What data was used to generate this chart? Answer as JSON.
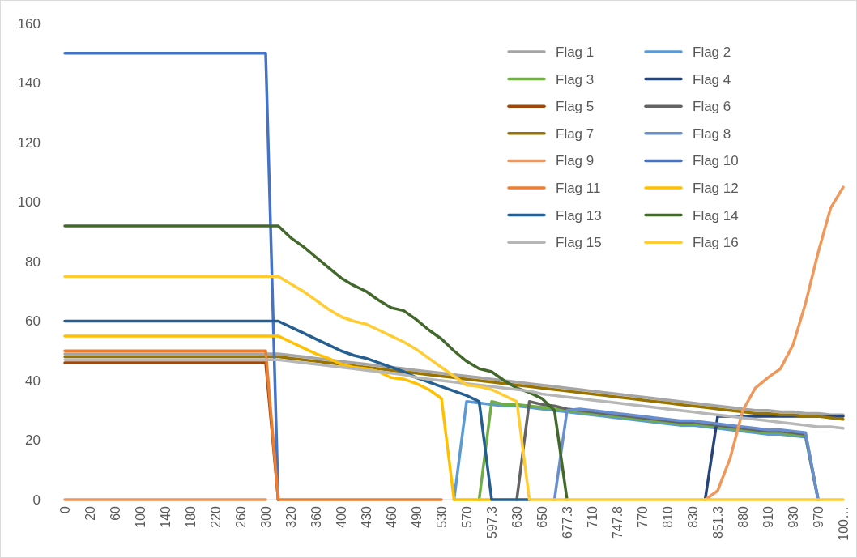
{
  "chart_data": {
    "type": "line",
    "categories": [
      "0",
      null,
      "20",
      null,
      "60",
      null,
      "100",
      null,
      "140",
      null,
      "180",
      null,
      "220",
      null,
      "260",
      null,
      "300",
      null,
      "320",
      null,
      "360",
      null,
      "400",
      null,
      "430",
      null,
      "460",
      null,
      "490",
      null,
      "530",
      null,
      "570",
      null,
      "597.3",
      null,
      "630",
      null,
      "650",
      null,
      "677.3",
      null,
      "710",
      null,
      "747.8",
      null,
      "770",
      null,
      "810",
      null,
      "830",
      null,
      "851.3",
      null,
      "880",
      null,
      "910",
      null,
      "930",
      null,
      "970",
      null,
      "100…"
    ],
    "ylim": [
      0,
      160
    ],
    "yticks": [
      0,
      20,
      40,
      60,
      80,
      100,
      120,
      140,
      160
    ],
    "grid": false,
    "legend": "top right",
    "line_style": "solid",
    "marker": "none",
    "series": [
      {
        "name": "Flag 1",
        "color": "#a5a5a5",
        "values": [
          49,
          49,
          49,
          49,
          49,
          49,
          49,
          49,
          49,
          49,
          49,
          49,
          49,
          49,
          49,
          49,
          49,
          49,
          48.5,
          48,
          47.5,
          47,
          46.5,
          46,
          45.5,
          45,
          44.5,
          44,
          43.5,
          43,
          42.5,
          42,
          41.5,
          41,
          40.5,
          40,
          39.5,
          39,
          38.5,
          38,
          37.5,
          37,
          36.5,
          36,
          35.5,
          35,
          34.5,
          34,
          33.5,
          33,
          32.5,
          32,
          31.5,
          31,
          30.5,
          30,
          30,
          29.5,
          29.5,
          29,
          29,
          28.5,
          28.5
        ]
      },
      {
        "name": "Flag 2",
        "color": "#5b9bd5",
        "values": [
          null,
          null,
          null,
          null,
          null,
          null,
          null,
          null,
          null,
          null,
          null,
          null,
          null,
          null,
          null,
          null,
          null,
          null,
          null,
          null,
          null,
          null,
          null,
          null,
          null,
          null,
          null,
          null,
          null,
          null,
          null,
          0,
          33,
          32.5,
          32,
          31.5,
          31.5,
          31,
          30.5,
          30,
          29.5,
          29,
          28.5,
          28,
          27.5,
          27,
          26.5,
          26,
          25.5,
          25,
          25,
          24.5,
          24,
          23.5,
          23,
          22.5,
          22,
          22,
          21.5,
          21,
          0,
          null,
          null
        ]
      },
      {
        "name": "Flag 3",
        "color": "#70ad47",
        "values": [
          null,
          null,
          null,
          null,
          null,
          null,
          null,
          null,
          null,
          null,
          null,
          null,
          null,
          null,
          null,
          null,
          null,
          null,
          null,
          null,
          null,
          null,
          null,
          null,
          null,
          null,
          null,
          null,
          null,
          null,
          null,
          null,
          null,
          0,
          33,
          32,
          32,
          31.5,
          31,
          30.5,
          30,
          29.5,
          29,
          28.5,
          28,
          27.5,
          27,
          26.5,
          26,
          25.5,
          25.5,
          25,
          24.5,
          24,
          23.5,
          23,
          22.5,
          22.5,
          22,
          21.5,
          0,
          null,
          null
        ]
      },
      {
        "name": "Flag 4",
        "color": "#264478",
        "values": [
          null,
          null,
          null,
          null,
          null,
          null,
          null,
          null,
          null,
          null,
          null,
          null,
          null,
          null,
          null,
          null,
          null,
          null,
          null,
          null,
          null,
          null,
          null,
          null,
          null,
          null,
          null,
          null,
          null,
          null,
          null,
          null,
          null,
          null,
          null,
          null,
          null,
          null,
          null,
          null,
          null,
          null,
          null,
          null,
          null,
          null,
          null,
          null,
          null,
          null,
          null,
          0,
          28,
          28,
          28,
          28,
          28,
          28,
          28,
          28,
          28,
          28,
          28
        ]
      },
      {
        "name": "Flag 5",
        "color": "#9e480e",
        "values": [
          46,
          46,
          46,
          46,
          46,
          46,
          46,
          46,
          46,
          46,
          46,
          46,
          46,
          46,
          46,
          46,
          46,
          0,
          null,
          null,
          null,
          null,
          null,
          null,
          null,
          null,
          null,
          null,
          null,
          null,
          null,
          null,
          null,
          null,
          null,
          null,
          null,
          null,
          null,
          null,
          null,
          null,
          null,
          null,
          null,
          null,
          null,
          null,
          null,
          null,
          null,
          null,
          null,
          null,
          null,
          null,
          null,
          null,
          null,
          null,
          null,
          null,
          null
        ]
      },
      {
        "name": "Flag 6",
        "color": "#636363",
        "values": [
          null,
          null,
          null,
          null,
          null,
          null,
          null,
          null,
          null,
          null,
          null,
          null,
          null,
          null,
          null,
          null,
          null,
          null,
          null,
          null,
          null,
          null,
          null,
          null,
          null,
          null,
          null,
          null,
          null,
          null,
          null,
          null,
          null,
          null,
          null,
          null,
          0,
          33,
          32,
          31.5,
          30.5,
          30,
          29.5,
          29,
          28.5,
          28,
          27.5,
          27,
          26.5,
          26,
          26,
          25.5,
          25,
          24.5,
          24,
          23.5,
          23,
          23,
          22.5,
          22,
          0,
          null,
          null
        ]
      },
      {
        "name": "Flag 7",
        "color": "#997300",
        "values": [
          48,
          48,
          48,
          48,
          48,
          48,
          48,
          48,
          48,
          48,
          48,
          48,
          48,
          48,
          48,
          48,
          48,
          48,
          47.5,
          47,
          46.5,
          46,
          45.5,
          45,
          44.5,
          44,
          43.5,
          43,
          42.5,
          42,
          41.5,
          41,
          40.5,
          40,
          39.5,
          39,
          38.5,
          38,
          37.5,
          37,
          36.5,
          36,
          35.5,
          35,
          34.5,
          34,
          33.5,
          33,
          32.5,
          32,
          31.5,
          31,
          30.5,
          30,
          29.5,
          29,
          29,
          28.5,
          28.5,
          28,
          28,
          27.5,
          27
        ]
      },
      {
        "name": "Flag 8",
        "color": "#698ed0",
        "values": [
          null,
          null,
          null,
          null,
          null,
          null,
          null,
          null,
          null,
          null,
          null,
          null,
          null,
          null,
          null,
          null,
          null,
          null,
          null,
          null,
          null,
          null,
          null,
          null,
          null,
          null,
          null,
          null,
          null,
          null,
          null,
          null,
          null,
          null,
          null,
          null,
          null,
          null,
          null,
          0,
          30,
          30.5,
          30,
          29.5,
          29,
          28.5,
          28,
          27.5,
          27,
          26.5,
          26.5,
          26,
          25.5,
          25,
          24.5,
          24,
          23.5,
          23.5,
          23,
          22.5,
          0,
          null,
          null
        ]
      },
      {
        "name": "Flag 9",
        "color": "#f1975a",
        "values": [
          0,
          0,
          0,
          0,
          0,
          0,
          0,
          0,
          0,
          0,
          0,
          0,
          0,
          0,
          0,
          0,
          0,
          null,
          null,
          null,
          null,
          null,
          null,
          null,
          null,
          null,
          null,
          null,
          null,
          null,
          null,
          null,
          null,
          null,
          null,
          null,
          null,
          null,
          null,
          null,
          null,
          null,
          null,
          null,
          null,
          null,
          null,
          null,
          null,
          null,
          null,
          0,
          3,
          14,
          30,
          37.5,
          41,
          44,
          52,
          66,
          83,
          98,
          105
        ]
      },
      {
        "name": "Flag 10",
        "color": "#4472c4",
        "values": [
          150,
          150,
          150,
          150,
          150,
          150,
          150,
          150,
          150,
          150,
          150,
          150,
          150,
          150,
          150,
          150,
          150,
          0,
          null,
          null,
          null,
          null,
          null,
          null,
          null,
          null,
          null,
          null,
          null,
          null,
          null,
          null,
          null,
          null,
          null,
          null,
          null,
          null,
          null,
          null,
          null,
          null,
          null,
          null,
          null,
          null,
          null,
          null,
          null,
          null,
          null,
          null,
          null,
          null,
          null,
          null,
          null,
          null,
          null,
          null,
          null,
          null,
          null
        ]
      },
      {
        "name": "Flag 11",
        "color": "#ed7d31",
        "values": [
          50,
          50,
          50,
          50,
          50,
          50,
          50,
          50,
          50,
          50,
          50,
          50,
          50,
          50,
          50,
          50,
          50,
          0,
          0,
          0,
          0,
          0,
          0,
          0,
          0,
          0,
          0,
          0,
          0,
          0,
          0,
          null,
          null,
          null,
          null,
          null,
          null,
          null,
          null,
          null,
          null,
          null,
          null,
          null,
          null,
          null,
          null,
          null,
          null,
          null,
          null,
          null,
          null,
          null,
          null,
          null,
          null,
          null,
          null,
          null,
          null,
          null,
          null
        ]
      },
      {
        "name": "Flag 12",
        "color": "#ffc000",
        "values": [
          55,
          55,
          55,
          55,
          55,
          55,
          55,
          55,
          55,
          55,
          55,
          55,
          55,
          55,
          55,
          55,
          55,
          55,
          53,
          51,
          49,
          47.5,
          45.5,
          44.5,
          44,
          43,
          41,
          40.5,
          39,
          37,
          34,
          0,
          0,
          0,
          0,
          null,
          null,
          null,
          null,
          null,
          null,
          null,
          null,
          null,
          null,
          null,
          null,
          null,
          null,
          null,
          null,
          null,
          null,
          null,
          null,
          null,
          null,
          null,
          null,
          null,
          null,
          null,
          null
        ]
      },
      {
        "name": "Flag 13",
        "color": "#255e91",
        "values": [
          60,
          60,
          60,
          60,
          60,
          60,
          60,
          60,
          60,
          60,
          60,
          60,
          60,
          60,
          60,
          60,
          60,
          60,
          58,
          56,
          54,
          52,
          50,
          48.5,
          47.5,
          46,
          44.5,
          43,
          41,
          39.5,
          38,
          36.5,
          35,
          33,
          0,
          0,
          0,
          0,
          null,
          null,
          null,
          null,
          null,
          null,
          null,
          null,
          null,
          null,
          null,
          null,
          null,
          null,
          null,
          null,
          null,
          null,
          null,
          null,
          null,
          null,
          null,
          null,
          null
        ]
      },
      {
        "name": "Flag 14",
        "color": "#43682b",
        "values": [
          92,
          92,
          92,
          92,
          92,
          92,
          92,
          92,
          92,
          92,
          92,
          92,
          92,
          92,
          92,
          92,
          92,
          92,
          88,
          85,
          81.5,
          78,
          74.5,
          72,
          70,
          67,
          64.5,
          63.5,
          60.5,
          57,
          54,
          50,
          46.5,
          44,
          43,
          40,
          37.5,
          36,
          34,
          30,
          0,
          null,
          null,
          null,
          null,
          null,
          null,
          null,
          null,
          null,
          null,
          null,
          null,
          null,
          null,
          null,
          null,
          null,
          null,
          null,
          null,
          null,
          null
        ]
      },
      {
        "name": "Flag 15",
        "color": "#b7b7b7",
        "values": [
          47,
          47,
          47,
          47,
          47,
          47,
          47,
          47,
          47,
          47,
          47,
          47,
          47,
          47,
          47,
          47,
          47,
          47,
          46.5,
          46,
          45.5,
          45,
          44.5,
          44,
          43.5,
          43,
          42.5,
          42,
          41,
          40.5,
          40,
          39.5,
          39,
          38.5,
          38,
          37.5,
          37,
          36.5,
          35.5,
          35,
          34.5,
          34,
          33.5,
          33,
          32.5,
          32,
          31.5,
          31,
          30.5,
          30,
          29.5,
          29,
          28.5,
          28,
          27.5,
          27,
          26.5,
          26,
          25.5,
          25,
          24.5,
          24.5,
          24
        ]
      },
      {
        "name": "Flag 16",
        "color": "#ffcd33",
        "values": [
          75,
          75,
          75,
          75,
          75,
          75,
          75,
          75,
          75,
          75,
          75,
          75,
          75,
          75,
          75,
          75,
          75,
          75,
          72.5,
          70,
          67,
          64,
          61.5,
          60,
          59,
          57,
          55,
          53,
          50.5,
          47.5,
          44.5,
          41.5,
          38.5,
          38,
          37,
          35,
          33,
          0,
          0,
          0,
          0,
          0,
          0,
          0,
          0,
          0,
          0,
          0,
          0,
          0,
          0,
          0,
          0,
          0,
          0,
          0,
          0,
          0,
          0,
          0,
          0,
          0,
          0
        ]
      }
    ]
  }
}
